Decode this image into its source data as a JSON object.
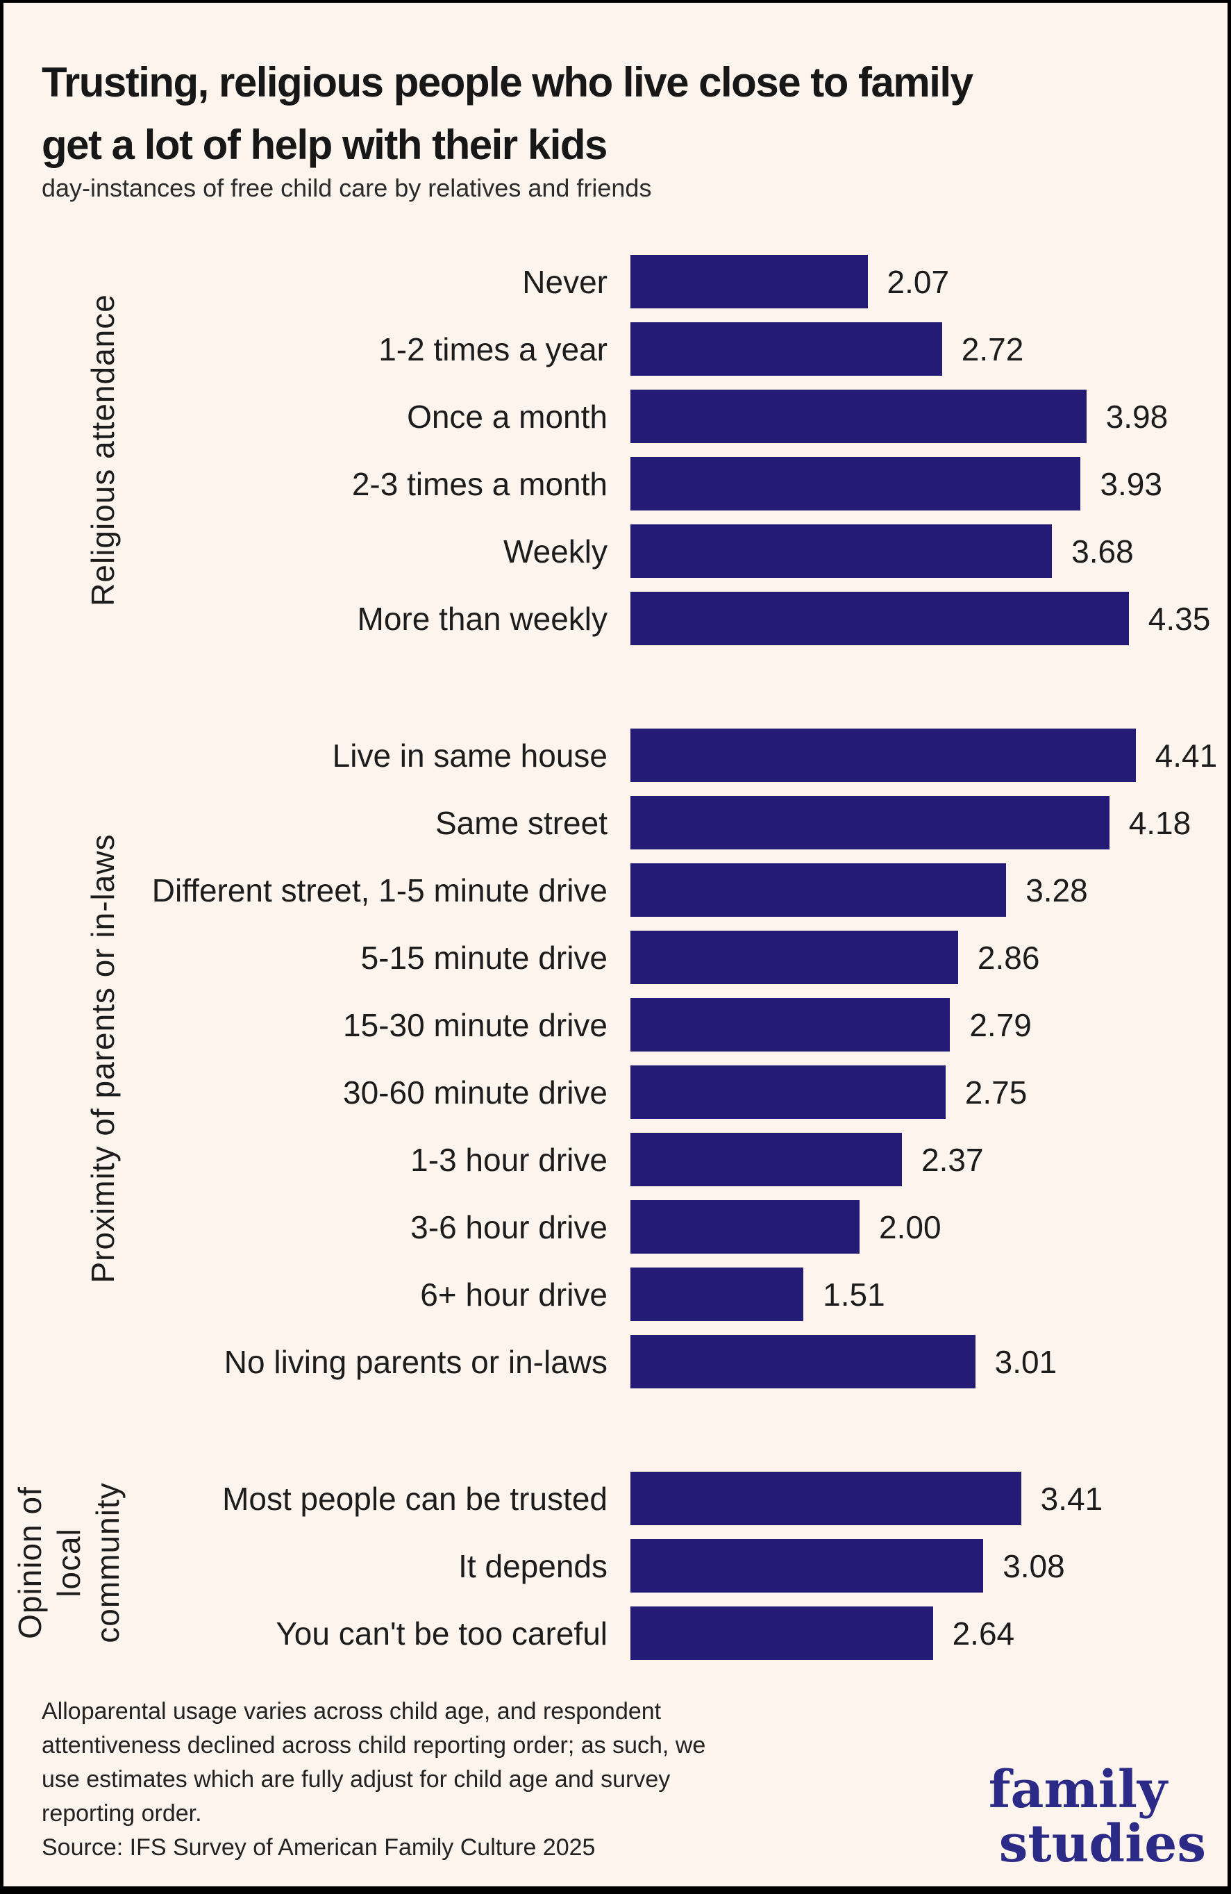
{
  "title": {
    "text": "Trusting, religious people who live close to family get a lot of help with their kids",
    "lines": [
      "Trusting, religious people who live close to family",
      "get a lot of help with their kids"
    ]
  },
  "subtitle": "day-instances of free child care by relatives and friends",
  "colors": {
    "background": "#fdf4ee",
    "bar": "#231b76",
    "logo": "#2b2a87",
    "text": "#1b1b1b",
    "frame": "#000000"
  },
  "chart_data": {
    "type": "bar",
    "orientation": "horizontal",
    "value_range": [
      0,
      5
    ],
    "grid": false,
    "legend": false,
    "value_labels": "end-of-bar, 2 decimals",
    "groups": [
      {
        "label": "Religious attendance",
        "items": [
          {
            "label": "Never",
            "value": 2.07
          },
          {
            "label": "1-2 times a year",
            "value": 2.72
          },
          {
            "label": "Once a month",
            "value": 3.98
          },
          {
            "label": "2-3 times a month",
            "value": 3.93
          },
          {
            "label": "Weekly",
            "value": 3.68
          },
          {
            "label": "More than weekly",
            "value": 4.35
          }
        ]
      },
      {
        "label": "Proximity of parents or in-laws",
        "items": [
          {
            "label": "Live in same house",
            "value": 4.41
          },
          {
            "label": "Same street",
            "value": 4.18
          },
          {
            "label": "Different street, 1-5 minute drive",
            "value": 3.28
          },
          {
            "label": "5-15 minute drive",
            "value": 2.86
          },
          {
            "label": "15-30 minute drive",
            "value": 2.79
          },
          {
            "label": "30-60 minute drive",
            "value": 2.75
          },
          {
            "label": "1-3 hour drive",
            "value": 2.37
          },
          {
            "label": "3-6 hour drive",
            "value": 2.0
          },
          {
            "label": "6+ hour drive",
            "value": 1.51
          },
          {
            "label": "No living parents or in-laws",
            "value": 3.01
          }
        ]
      },
      {
        "label": "Opinion of local community",
        "label_lines": [
          "Opinion of",
          "local",
          "community"
        ],
        "items": [
          {
            "label": "Most people can be trusted",
            "value": 3.41
          },
          {
            "label": "It depends",
            "value": 3.08
          },
          {
            "label": "You can't be too careful",
            "value": 2.64
          }
        ]
      }
    ]
  },
  "footer": {
    "note_lines": [
      "Alloparental usage varies across child age, and respondent",
      "attentiveness declined across child reporting order; as such, we",
      "use estimates which are fully adjust for child age and survey",
      "reporting order."
    ],
    "source": "Source: IFS Survey of American Family Culture 2025"
  },
  "logo": {
    "line1": "family",
    "line2": "studies"
  }
}
